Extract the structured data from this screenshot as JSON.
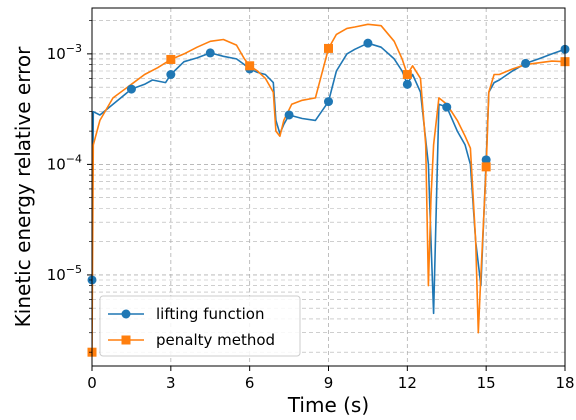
{
  "chart_data": {
    "type": "line",
    "title": "",
    "xlabel": "Time (s)",
    "ylabel": "Kinetic energy relative error",
    "xlim": [
      0,
      18
    ],
    "ylim": [
      1.5e-06,
      0.0026
    ],
    "yscale": "log",
    "grid": true,
    "grid_minor": true,
    "legend_position": "lower-left",
    "x_ticks": [
      {
        "value": 0,
        "label": "0"
      },
      {
        "value": 3,
        "label": "3"
      },
      {
        "value": 6,
        "label": "6"
      },
      {
        "value": 9,
        "label": "9"
      },
      {
        "value": 12,
        "label": "12"
      },
      {
        "value": 15,
        "label": "15"
      },
      {
        "value": 18,
        "label": "18"
      }
    ],
    "y_ticks": [
      {
        "value": 1e-05,
        "base": "10",
        "exp": "−5"
      },
      {
        "value": 0.0001,
        "base": "10",
        "exp": "−4"
      },
      {
        "value": 0.001,
        "base": "10",
        "exp": "−3"
      }
    ],
    "series": [
      {
        "name": "lifting function",
        "color": "#1f77b4",
        "marker": "circle",
        "x": [
          0,
          0.05,
          0.3,
          0.8,
          1.5,
          2.0,
          2.3,
          2.8,
          3.0,
          3.5,
          4.0,
          4.5,
          5.0,
          5.5,
          5.8,
          6.0,
          6.3,
          6.6,
          6.9,
          7.0,
          7.15,
          7.3,
          7.5,
          8.0,
          8.5,
          9.0,
          9.3,
          9.7,
          10.0,
          10.5,
          11.0,
          11.5,
          11.8,
          12.0,
          12.2,
          12.5,
          12.8,
          12.9,
          13.0,
          13.2,
          13.5,
          13.9,
          14.2,
          14.4,
          14.6,
          14.8,
          15.0,
          15.1,
          15.3,
          15.5,
          16.0,
          16.5,
          17.0,
          17.5,
          18.0
        ],
        "y": [
          9e-06,
          0.0003,
          0.00028,
          0.00035,
          0.00048,
          0.00053,
          0.00058,
          0.00055,
          0.00065,
          0.00085,
          0.00092,
          0.00102,
          0.00095,
          0.0009,
          0.0008,
          0.00073,
          0.00068,
          0.00065,
          0.00055,
          0.00025,
          0.00019,
          0.00023,
          0.00028,
          0.00026,
          0.00025,
          0.00037,
          0.0007,
          0.001,
          0.0011,
          0.00125,
          0.00115,
          0.0009,
          0.0007,
          0.00053,
          0.00065,
          0.00045,
          0.0001,
          2e-05,
          4.5e-06,
          0.00035,
          0.00033,
          0.0002,
          0.00015,
          0.0001,
          2e-05,
          8e-06,
          0.00011,
          0.00045,
          0.00055,
          0.00058,
          0.0007,
          0.00082,
          0.0009,
          0.001,
          0.0011
        ],
        "marker_x": [
          0,
          1.5,
          3.0,
          4.5,
          6.0,
          7.5,
          9.0,
          10.5,
          12.0,
          13.5,
          15.0,
          16.5,
          18.0
        ],
        "marker_y": [
          9e-06,
          0.00048,
          0.00065,
          0.00102,
          0.00073,
          0.00028,
          0.00037,
          0.00125,
          0.00053,
          0.00033,
          0.00011,
          0.00082,
          0.0011
        ]
      },
      {
        "name": "penalty method",
        "color": "#ff7f0e",
        "marker": "square",
        "x": [
          0,
          0.05,
          0.3,
          0.8,
          1.5,
          2.0,
          2.5,
          3.0,
          3.5,
          4.0,
          4.5,
          5.0,
          5.5,
          5.8,
          6.0,
          6.3,
          6.6,
          6.9,
          7.0,
          7.15,
          7.3,
          7.6,
          8.0,
          8.5,
          9.0,
          9.3,
          9.7,
          10.0,
          10.5,
          11.0,
          11.5,
          11.8,
          12.0,
          12.2,
          12.5,
          12.7,
          12.8,
          12.9,
          13.0,
          13.2,
          13.5,
          13.9,
          14.2,
          14.4,
          14.6,
          14.7,
          14.8,
          15.0,
          15.1,
          15.3,
          15.5,
          16.0,
          16.5,
          17.0,
          17.5,
          18.0
        ],
        "y": [
          2e-06,
          0.00015,
          0.00025,
          0.0004,
          0.00053,
          0.00065,
          0.00075,
          0.00089,
          0.001,
          0.00115,
          0.0013,
          0.00135,
          0.0012,
          0.0009,
          0.00078,
          0.0007,
          0.0006,
          0.00045,
          0.0002,
          0.00018,
          0.00025,
          0.00035,
          0.00038,
          0.0004,
          0.00112,
          0.0015,
          0.0017,
          0.00175,
          0.00185,
          0.0018,
          0.0013,
          0.0009,
          0.00065,
          0.00078,
          0.0006,
          0.00015,
          8e-06,
          5e-05,
          0.00015,
          0.0004,
          0.00035,
          0.00025,
          0.00018,
          0.00014,
          2e-05,
          3e-06,
          1e-05,
          9.5e-05,
          0.00045,
          0.00065,
          0.00065,
          0.00073,
          0.0008,
          0.00083,
          0.00086,
          0.00085
        ],
        "marker_x": [
          0,
          3.0,
          6.0,
          9.0,
          12.0,
          15.0,
          18.0
        ],
        "marker_y": [
          2e-06,
          0.00089,
          0.00078,
          0.00112,
          0.00065,
          9.5e-05,
          0.00085
        ]
      }
    ]
  }
}
